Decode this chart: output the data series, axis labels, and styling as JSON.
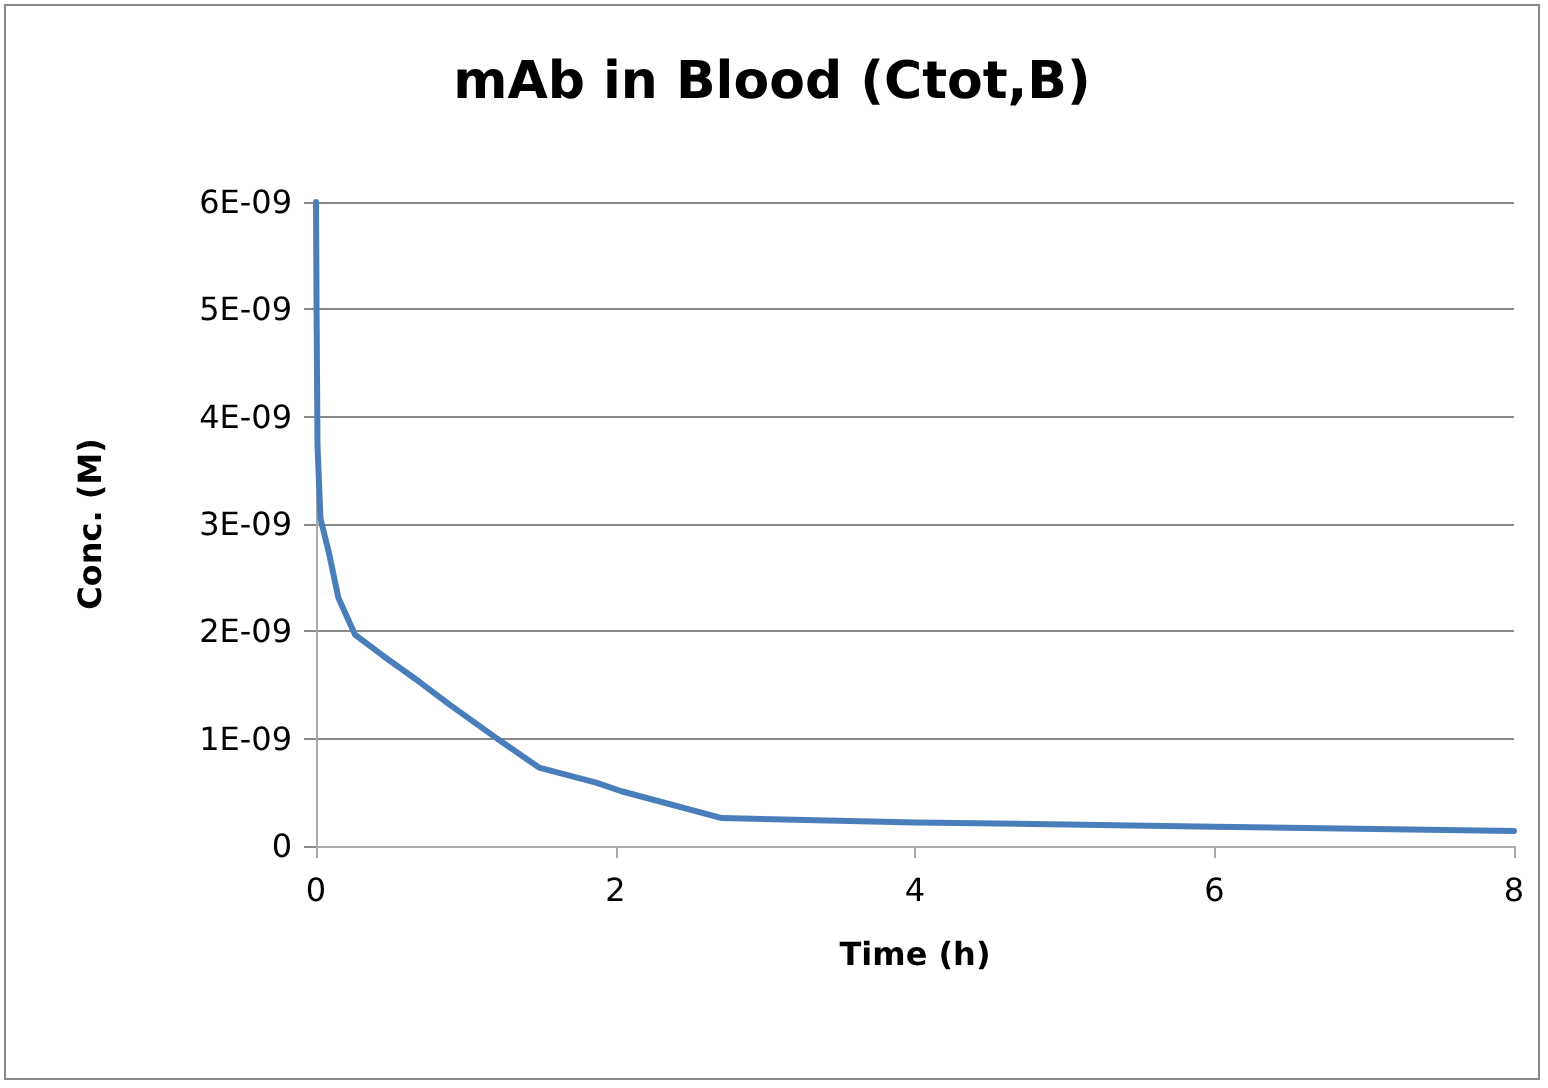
{
  "chart_data": {
    "type": "line",
    "title": "mAb in Blood (Ctot,B)",
    "xlabel": "Time (h)",
    "ylabel": "Conc. (M)",
    "x": [
      0,
      0.004,
      0.01,
      0.03,
      0.085,
      0.15,
      0.26,
      0.44,
      0.69,
      0.89,
      1.2,
      1.49,
      1.87,
      2.04,
      2.71,
      4,
      6,
      8
    ],
    "series": [
      {
        "color": "#4a7ebb",
        "values": [
          6e-09,
          4.96e-09,
          3.73e-09,
          3.05e-09,
          2.74e-09,
          2.31e-09,
          1.97e-09,
          1.78e-09,
          1.53e-09,
          1.32e-09,
          1.01e-09,
          7.3e-10,
          5.9e-10,
          5.1e-10,
          2.6e-10,
          2.2e-10,
          1.8e-10,
          1.4e-10
        ]
      }
    ],
    "xlim": [
      0,
      8
    ],
    "xticks": [
      0,
      2,
      4,
      6,
      8
    ],
    "ylim": [
      0,
      6e-09
    ],
    "yticks": [
      {
        "value": 0,
        "label": "0"
      },
      {
        "value": 1e-09,
        "label": "1E-09"
      },
      {
        "value": 2e-09,
        "label": "2E-09"
      },
      {
        "value": 3e-09,
        "label": "3E-09"
      },
      {
        "value": 4e-09,
        "label": "4E-09"
      },
      {
        "value": 5e-09,
        "label": "5E-09"
      },
      {
        "value": 6e-09,
        "label": "6E-09"
      }
    ],
    "grid": "y",
    "marker": "none",
    "line_style": "solid"
  }
}
